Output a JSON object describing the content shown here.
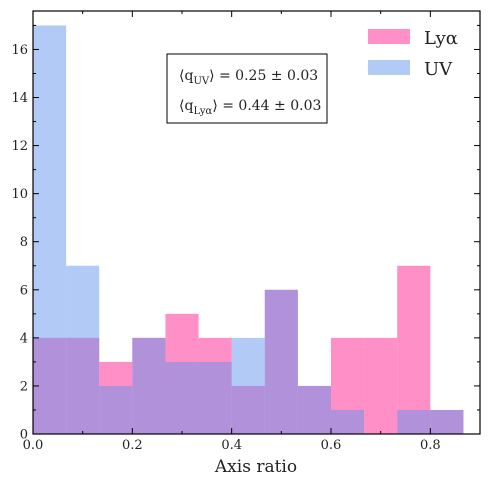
{
  "chart_data": {
    "type": "histogram",
    "xlabel": "Axis ratio",
    "ylabel": "",
    "xlim": [
      0.0,
      0.9
    ],
    "ylim": [
      0,
      17.6
    ],
    "bin_edges": [
      0.0,
      0.0667,
      0.1333,
      0.2,
      0.2667,
      0.3333,
      0.4,
      0.4667,
      0.5333,
      0.6,
      0.6667,
      0.7333,
      0.8,
      0.8667,
      0.9333
    ],
    "series": [
      {
        "name": "Lyα",
        "color": "#ff69b4",
        "opacity": 0.75,
        "values": [
          4,
          4,
          3,
          4,
          5,
          4,
          2,
          6,
          2,
          4,
          4,
          7,
          1,
          0
        ]
      },
      {
        "name": "UV",
        "color": "#6495ed",
        "opacity": 0.5,
        "values": [
          17,
          7,
          2,
          4,
          3,
          3,
          4,
          6,
          2,
          1,
          0,
          1,
          1,
          0
        ]
      }
    ],
    "xticks": [
      0.0,
      0.2,
      0.4,
      0.6,
      0.8
    ],
    "xtick_labels": [
      "0.0",
      "0.2",
      "0.4",
      "0.6",
      "0.8"
    ],
    "yticks": [
      0,
      2,
      4,
      6,
      8,
      10,
      12,
      14,
      16
    ],
    "ytick_labels": [
      "0",
      "2",
      "4",
      "6",
      "8",
      "10",
      "12",
      "14",
      "16"
    ],
    "legend": {
      "placement": "top-right",
      "entries": [
        "Lyα",
        "UV"
      ]
    },
    "annotation": {
      "lines": [
        {
          "prefix": "⟨q",
          "sub": "UV",
          "suffix": "⟩ = 0.25 ± 0.03"
        },
        {
          "prefix": "⟨q",
          "sub": "Lyα",
          "suffix": "⟩ = 0.44 ± 0.03"
        }
      ]
    },
    "grid": false
  }
}
